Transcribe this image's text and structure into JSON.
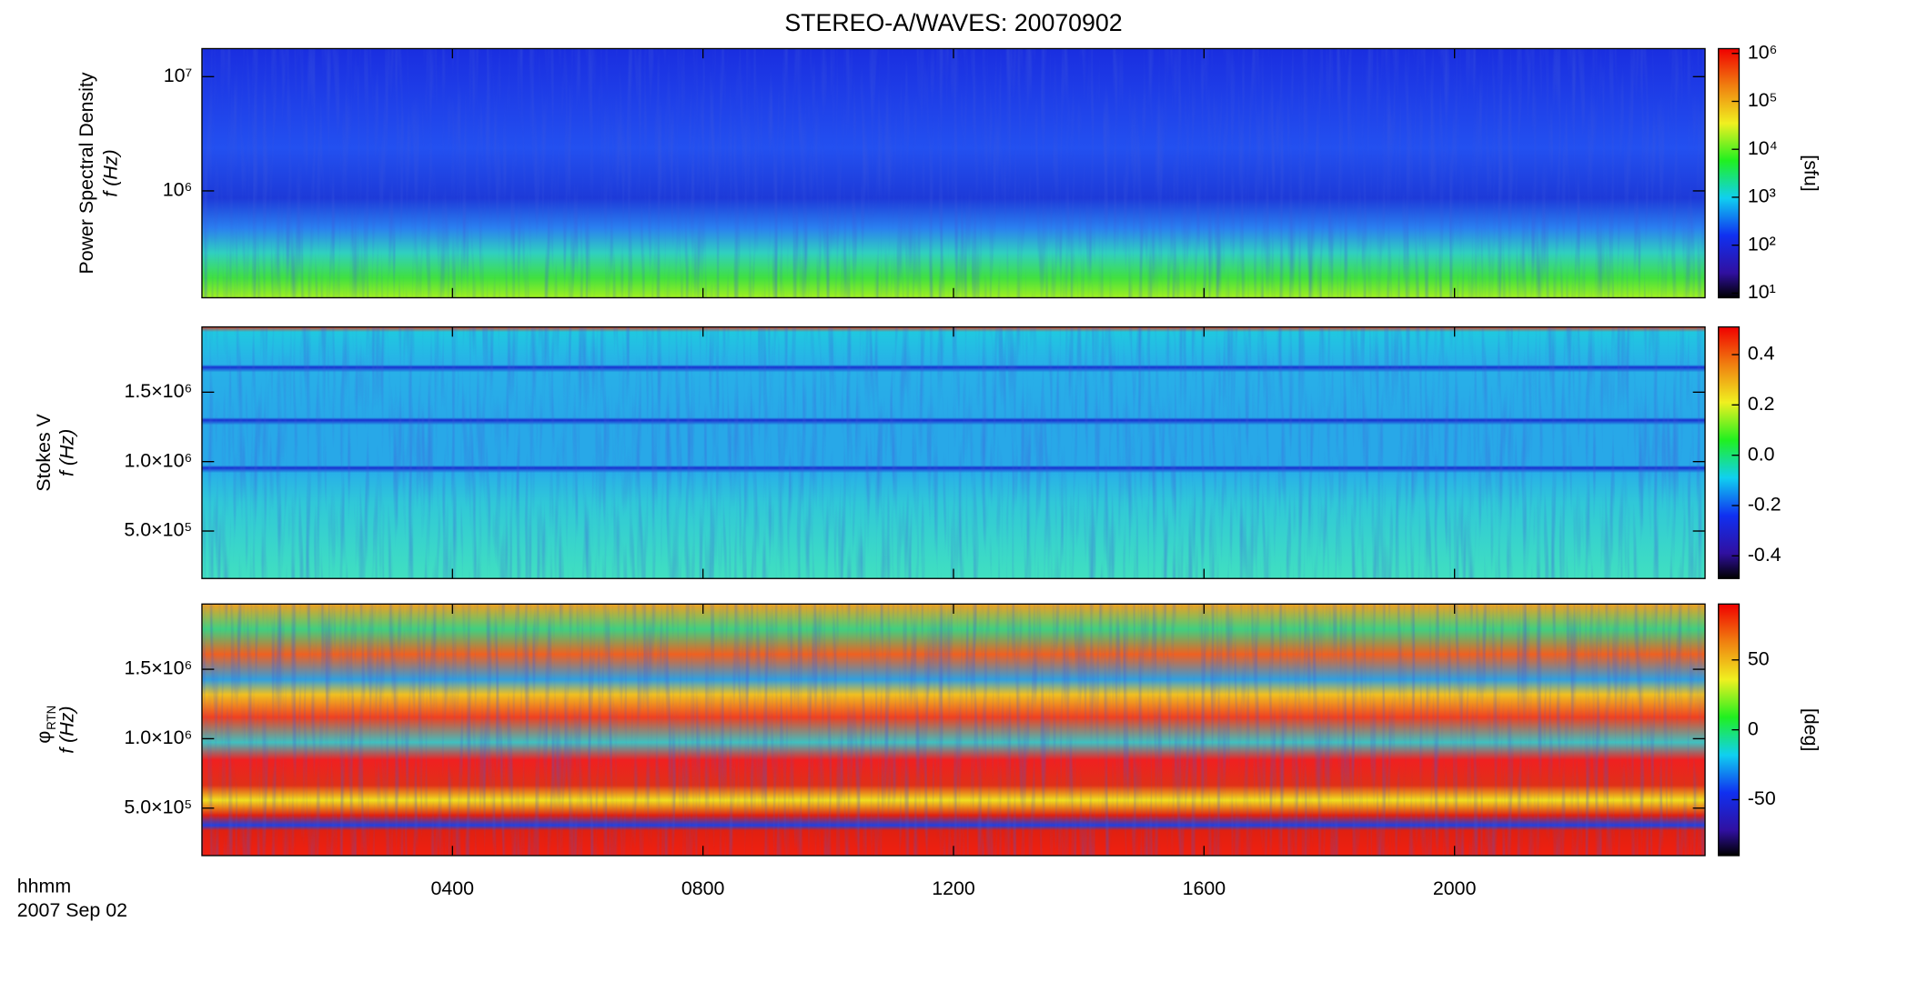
{
  "title": "STEREO-A/WAVES: 20070902",
  "chart_data": [
    {
      "type": "spectrogram",
      "ylabel": "Power Spectral Density",
      "ylabel2": "f (Hz)",
      "ylog": true,
      "ylim": [
        116000,
        17600000
      ],
      "yticks": [
        {
          "value": 1000000,
          "label": "10⁶"
        },
        {
          "value": 10000000,
          "label": "10⁷"
        }
      ],
      "clog": true,
      "clim": [
        8,
        1260000
      ],
      "cticks": [
        {
          "value": 10,
          "label": "10¹"
        },
        {
          "value": 100,
          "label": "10²"
        },
        {
          "value": 1000,
          "label": "10³"
        },
        {
          "value": 10000,
          "label": "10⁴"
        },
        {
          "value": 100000,
          "label": "10⁵"
        },
        {
          "value": 1000000,
          "label": "10⁶"
        }
      ],
      "clabel": "[sfu]"
    },
    {
      "type": "spectrogram",
      "ylabel": "Stokes V",
      "ylabel2": "f (Hz)",
      "ylog": false,
      "ylim": [
        158000,
        1970000
      ],
      "yticks": [
        {
          "value": 500000,
          "label": "5.0×10⁵"
        },
        {
          "value": 1000000,
          "label": "1.0×10⁶"
        },
        {
          "value": 1500000,
          "label": "1.5×10⁶"
        }
      ],
      "clog": false,
      "clim": [
        -0.49,
        0.51
      ],
      "cticks": [
        -0.4,
        -0.2,
        {
          "value": 0,
          "label": "0.0"
        },
        0.2,
        0.4
      ]
    },
    {
      "type": "spectrogram",
      "ylabel": "φ",
      "ylabel_subscript": "RTN",
      "ylabel2": "f (Hz)",
      "ylog": false,
      "ylim": [
        158000,
        1970000
      ],
      "yticks": [
        {
          "value": 500000,
          "label": "5.0×10⁵"
        },
        {
          "value": 1000000,
          "label": "1.0×10⁶"
        },
        {
          "value": 1500000,
          "label": "1.5×10⁶"
        }
      ],
      "clog": false,
      "clim": [
        -90,
        90
      ],
      "cticks": [
        -50,
        0,
        50
      ],
      "clabel": "[deg]",
      "xlabel": "hhmm",
      "xsublabel": "2007 Sep 02",
      "xlim": [
        0,
        24
      ],
      "xticks": [
        {
          "value": 4,
          "label": "0400"
        },
        {
          "value": 8,
          "label": "0800"
        },
        {
          "value": 12,
          "label": "1200"
        },
        {
          "value": 16,
          "label": "1600"
        },
        {
          "value": 20,
          "label": "2000"
        }
      ]
    }
  ]
}
